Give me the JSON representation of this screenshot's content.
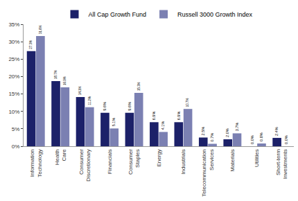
{
  "chart_data": {
    "type": "bar",
    "categories": [
      "Information Technology",
      "Health Care",
      "Consumer Discretionary",
      "Financials",
      "Consumer Staples",
      "Energy",
      "Industrials",
      "Telecommunication Services",
      "Materials",
      "Utilities",
      "Short-term Investments"
    ],
    "series": [
      {
        "name": "All Cap Growth Fund",
        "color": "#1c2169",
        "values": [
          27.3,
          18.7,
          14.1,
          9.6,
          9.6,
          6.9,
          6.9,
          2.5,
          2.0,
          0.0,
          2.4
        ],
        "value_labels": [
          "27.3%",
          "18.7%",
          "14.1%",
          "9.6%",
          "9.6%",
          "6.9%",
          "6.9%",
          "2.5%",
          "2.0%",
          "0.0%",
          "2.4%"
        ]
      },
      {
        "name": "Russell 3000 Growth Index",
        "color": "#7b80b2",
        "values": [
          31.6,
          16.9,
          11.2,
          5.1,
          15.3,
          4.1,
          10.7,
          0.7,
          3.7,
          0.8,
          0.0
        ],
        "value_labels": [
          "31.6%",
          "16.9%",
          "11.2%",
          "5.1%",
          "15.3%",
          "4.1%",
          "10.7%",
          "0.7%",
          "3.7%",
          "0.8%",
          "0.0%"
        ]
      }
    ],
    "ylim": [
      0,
      35
    ],
    "yticks": [
      {
        "value": 0,
        "label": "0%"
      },
      {
        "value": 5,
        "label": "5%"
      },
      {
        "value": 10,
        "label": "10%"
      },
      {
        "value": 15,
        "label": "15%"
      },
      {
        "value": 20,
        "label": "20%"
      },
      {
        "value": 25,
        "label": "25%"
      },
      {
        "value": 30,
        "label": "30%"
      },
      {
        "value": 35,
        "label": "35%"
      }
    ],
    "grid": false,
    "legend": "top",
    "data_labels": true
  }
}
